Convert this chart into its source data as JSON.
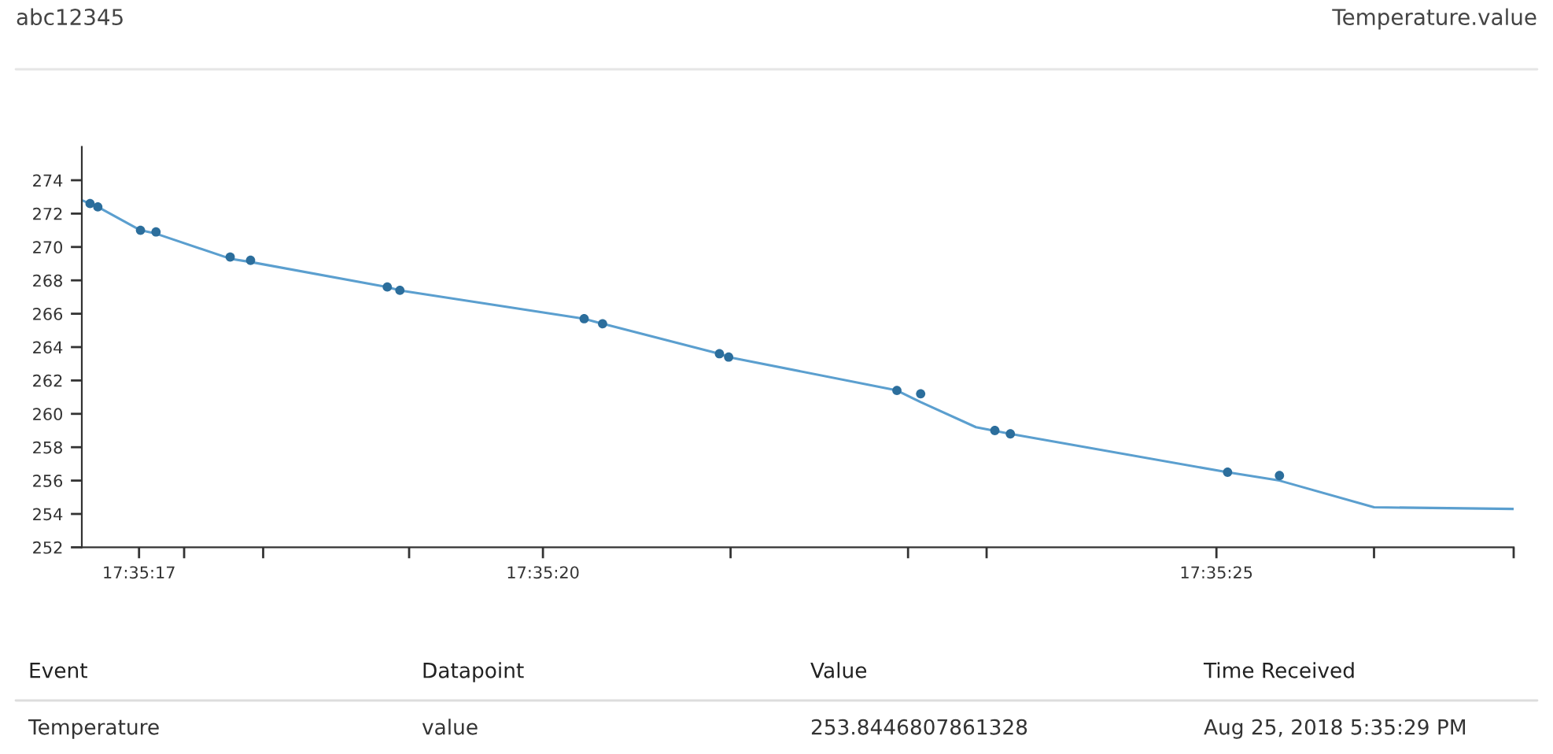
{
  "chart_data": {
    "type": "line",
    "title": "abc12345",
    "subtitle": "Temperature.value",
    "series": [
      {
        "type": "line",
        "color": "#5b9fcf",
        "x": [
          17.587938,
          17.587971,
          17.588059,
          17.588091,
          17.588244,
          17.588286,
          17.588568,
          17.588594,
          17.588974,
          17.589012,
          17.589253,
          17.589272,
          17.589619,
          17.589668,
          17.589782,
          17.589853,
          17.590301,
          17.590408,
          17.590603,
          17.590891
        ],
        "values": [
          272.8,
          272.4,
          271.0,
          270.8,
          269.3,
          269.1,
          267.6,
          267.4,
          265.7,
          265.4,
          263.6,
          263.4,
          261.4,
          260.7,
          259.2,
          258.8,
          256.5,
          256.0,
          254.4,
          254.3
        ]
      },
      {
        "type": "scatter",
        "color": "#2c6e9c",
        "marker": "circle",
        "x": [
          17.587955,
          17.587971,
          17.588059,
          17.588091,
          17.588244,
          17.588286,
          17.588568,
          17.588594,
          17.588974,
          17.589012,
          17.589253,
          17.589272,
          17.589619,
          17.589668,
          17.589821,
          17.589853,
          17.590301,
          17.590408
        ],
        "values": [
          272.6,
          272.4,
          271.0,
          270.9,
          269.4,
          269.2,
          267.6,
          267.4,
          265.7,
          265.4,
          263.6,
          263.4,
          261.4,
          261.2,
          259.0,
          258.8,
          256.5,
          256.3
        ]
      }
    ],
    "xlim": [
      17.587938,
      17.590891
    ],
    "xticks": [
      {
        "value": 17.588056,
        "label": "17:35:17"
      },
      {
        "value": 17.588149,
        "label": null
      },
      {
        "value": 17.588312,
        "label": null
      },
      {
        "value": 17.588613,
        "label": null
      },
      {
        "value": 17.588889,
        "label": "17:35:20"
      },
      {
        "value": 17.589276,
        "label": null
      },
      {
        "value": 17.589642,
        "label": null
      },
      {
        "value": 17.589804,
        "label": null
      },
      {
        "value": 17.590278,
        "label": "17:35:25"
      },
      {
        "value": 17.590603,
        "label": null
      },
      {
        "value": 17.590891,
        "label": null
      }
    ],
    "ylim": [
      252,
      276
    ],
    "yticks": [
      252,
      254,
      256,
      258,
      260,
      262,
      264,
      266,
      268,
      270,
      272,
      274
    ],
    "grid": false,
    "legend": false,
    "annotations": [
      "Event",
      "Datapoint",
      "Value",
      "Time Received",
      "Temperature",
      "value",
      "253.8446807861328",
      "Aug 25, 2018 5:35:29 PM"
    ]
  }
}
